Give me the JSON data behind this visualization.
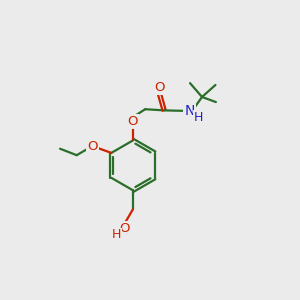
{
  "bg": "#ebebeb",
  "bc": "#2a6e2a",
  "oc": "#cc2200",
  "nc": "#2222cc",
  "lw": 1.6,
  "dpi": 100,
  "xlim": [
    0,
    10
  ],
  "ylim": [
    0,
    10
  ]
}
